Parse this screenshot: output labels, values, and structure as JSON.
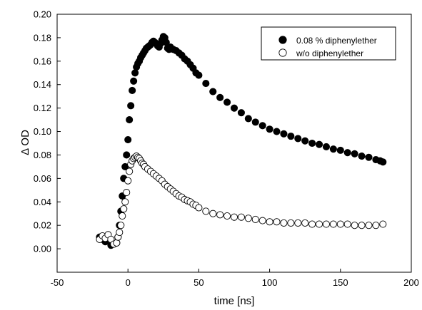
{
  "chart_data": {
    "type": "scatter",
    "xlabel": "time [ns]",
    "ylabel": "Δ OD",
    "xlim": [
      -50,
      200
    ],
    "ylim": [
      -0.02,
      0.2
    ],
    "x_ticks": [
      "-50",
      "0",
      "50",
      "100",
      "150",
      "200"
    ],
    "y_ticks": [
      "0.00",
      "0.02",
      "0.04",
      "0.06",
      "0.08",
      "0.10",
      "0.12",
      "0.14",
      "0.16",
      "0.18",
      "0.20"
    ],
    "legend_position": "top-right",
    "grid": false,
    "series": [
      {
        "name": "0.08 % diphenylether",
        "marker": "filled-circle",
        "color": "#000000",
        "x": [
          -20,
          -18,
          -16,
          -14,
          -12,
          -10,
          -8,
          -7,
          -6,
          -5,
          -4,
          -3,
          -2,
          -1,
          0,
          1,
          2,
          3,
          4,
          5,
          6,
          7,
          8,
          9,
          10,
          11,
          12,
          13,
          14,
          15,
          16,
          17,
          18,
          19,
          20,
          21,
          22,
          23,
          24,
          25,
          26,
          27,
          28,
          29,
          30,
          32,
          34,
          36,
          38,
          40,
          42,
          44,
          46,
          48,
          50,
          55,
          60,
          65,
          70,
          75,
          80,
          85,
          90,
          95,
          100,
          105,
          110,
          115,
          120,
          125,
          130,
          135,
          140,
          145,
          150,
          155,
          160,
          165,
          170,
          175,
          178,
          180
        ],
        "y": [
          0.01,
          0.008,
          0.006,
          0.009,
          0.003,
          0.004,
          0.005,
          0.01,
          0.02,
          0.032,
          0.045,
          0.06,
          0.07,
          0.08,
          0.093,
          0.11,
          0.122,
          0.135,
          0.143,
          0.15,
          0.155,
          0.158,
          0.16,
          0.163,
          0.165,
          0.167,
          0.169,
          0.171,
          0.172,
          0.173,
          0.174,
          0.176,
          0.177,
          0.176,
          0.175,
          0.173,
          0.172,
          0.175,
          0.178,
          0.181,
          0.18,
          0.176,
          0.171,
          0.17,
          0.172,
          0.17,
          0.169,
          0.167,
          0.165,
          0.162,
          0.16,
          0.157,
          0.154,
          0.15,
          0.148,
          0.141,
          0.134,
          0.129,
          0.125,
          0.12,
          0.116,
          0.111,
          0.108,
          0.105,
          0.102,
          0.1,
          0.098,
          0.096,
          0.094,
          0.092,
          0.09,
          0.089,
          0.087,
          0.085,
          0.084,
          0.082,
          0.081,
          0.079,
          0.078,
          0.076,
          0.075,
          0.074
        ]
      },
      {
        "name": "w/o diphenylether",
        "marker": "open-circle",
        "color": "#000000",
        "x": [
          -20,
          -18,
          -16,
          -14,
          -12,
          -10,
          -8,
          -7,
          -6,
          -5,
          -4,
          -3,
          -2,
          -1,
          0,
          1,
          2,
          3,
          4,
          5,
          6,
          7,
          8,
          9,
          10,
          11,
          12,
          14,
          16,
          18,
          20,
          22,
          24,
          26,
          28,
          30,
          32,
          34,
          36,
          38,
          40,
          42,
          44,
          46,
          48,
          50,
          55,
          60,
          65,
          70,
          75,
          80,
          85,
          90,
          95,
          100,
          105,
          110,
          115,
          120,
          125,
          130,
          135,
          140,
          145,
          150,
          155,
          160,
          165,
          170,
          175,
          180
        ],
        "y": [
          0.008,
          0.011,
          0.009,
          0.012,
          0.008,
          0.004,
          0.005,
          0.01,
          0.014,
          0.02,
          0.028,
          0.034,
          0.04,
          0.048,
          0.058,
          0.066,
          0.072,
          0.075,
          0.077,
          0.078,
          0.079,
          0.078,
          0.077,
          0.075,
          0.073,
          0.072,
          0.07,
          0.068,
          0.066,
          0.064,
          0.062,
          0.06,
          0.058,
          0.055,
          0.053,
          0.051,
          0.049,
          0.047,
          0.045,
          0.044,
          0.042,
          0.041,
          0.04,
          0.038,
          0.037,
          0.035,
          0.032,
          0.03,
          0.029,
          0.028,
          0.027,
          0.027,
          0.026,
          0.025,
          0.024,
          0.023,
          0.023,
          0.022,
          0.022,
          0.022,
          0.022,
          0.021,
          0.021,
          0.021,
          0.021,
          0.021,
          0.021,
          0.02,
          0.02,
          0.02,
          0.02,
          0.021
        ]
      }
    ]
  }
}
